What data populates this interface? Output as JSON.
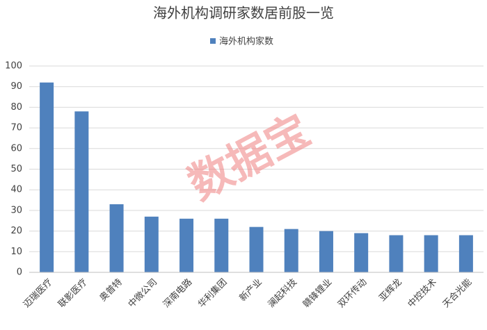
{
  "chart_data": {
    "type": "bar",
    "title": "海外机构调研家数居前股一览",
    "watermark": "数据宝",
    "categories": [
      "迈瑞医疗",
      "联影医疗",
      "奥普特",
      "中微公司",
      "深南电路",
      "华利集团",
      "新产业",
      "澜起科技",
      "赣锋锂业",
      "双环传动",
      "亚辉龙",
      "中控技术",
      "天合光能"
    ],
    "series": [
      {
        "name": "海外机构家数",
        "color": "#4f81bd",
        "values": [
          92,
          78,
          33,
          27,
          26,
          26,
          22,
          21,
          20,
          19,
          18,
          18,
          18
        ]
      }
    ],
    "ylim": [
      0,
      100
    ],
    "yticks": [
      0,
      10,
      20,
      30,
      40,
      50,
      60,
      70,
      80,
      90,
      100
    ],
    "grid": true,
    "legend": "top"
  }
}
